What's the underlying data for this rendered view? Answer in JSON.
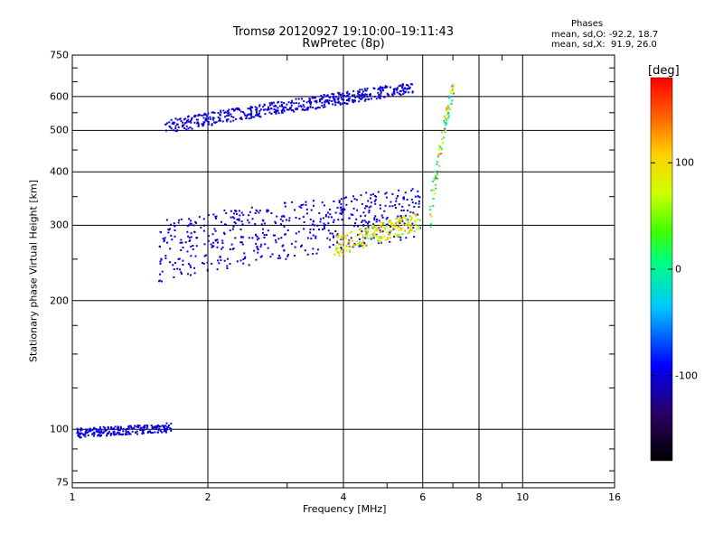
{
  "chart_data": {
    "type": "scatter",
    "title": "Tromsø 20120927 19:10:00–19:11:43",
    "subtitle": "RwPretec (8p)",
    "xlabel": "Frequency [MHz]",
    "ylabel": "Stationary phase Virtual Height [km]",
    "x_scale": "log",
    "y_scale": "log",
    "xlim": [
      1,
      16
    ],
    "ylim": [
      73,
      750
    ],
    "x_ticks": [
      "1",
      "2",
      "4",
      "6",
      "8",
      "10",
      "16"
    ],
    "y_ticks": [
      "75",
      "100",
      "200",
      "300",
      "400",
      "500",
      "600",
      "750"
    ],
    "grid": true,
    "stats_legend": {
      "title": "Phases",
      "line1": "mean, sd,O: -92.2, 18.7",
      "line2": "mean, sd,X:  91.9, 26.0"
    },
    "colorbar": {
      "label": "[deg]",
      "range": [
        -180,
        180
      ],
      "ticks": [
        "100",
        "0",
        "-100"
      ]
    },
    "traces": [
      {
        "name_hint": "O-F2 lower",
        "x_start": 1.55,
        "x_end": 5.9,
        "y_start": 240,
        "y_end": 300,
        "thickness_km": 90,
        "phase_start": -110,
        "phase_end": -90
      },
      {
        "name_hint": "X-F2 lower",
        "x_start": 3.8,
        "x_end": 5.9,
        "y_start": 260,
        "y_end": 300,
        "thickness_km": 30,
        "phase_start": 40,
        "phase_end": 140
      },
      {
        "name_hint": "O-F2 upper",
        "x_start": 1.6,
        "x_end": 5.7,
        "y_start": 500,
        "y_end": 620,
        "thickness_km": 40,
        "phase_start": -110,
        "phase_end": -90
      },
      {
        "name_hint": "Cusp",
        "x_start": 6.2,
        "x_end": 7.0,
        "y_start": 300,
        "y_end": 620,
        "thickness_km": 60,
        "phase_start": -60,
        "phase_end": 140
      },
      {
        "name_hint": "E-region",
        "x_start": 1.02,
        "x_end": 1.65,
        "y_start": 97,
        "y_end": 100,
        "thickness_km": 5,
        "phase_start": -110,
        "phase_end": -90
      }
    ]
  }
}
